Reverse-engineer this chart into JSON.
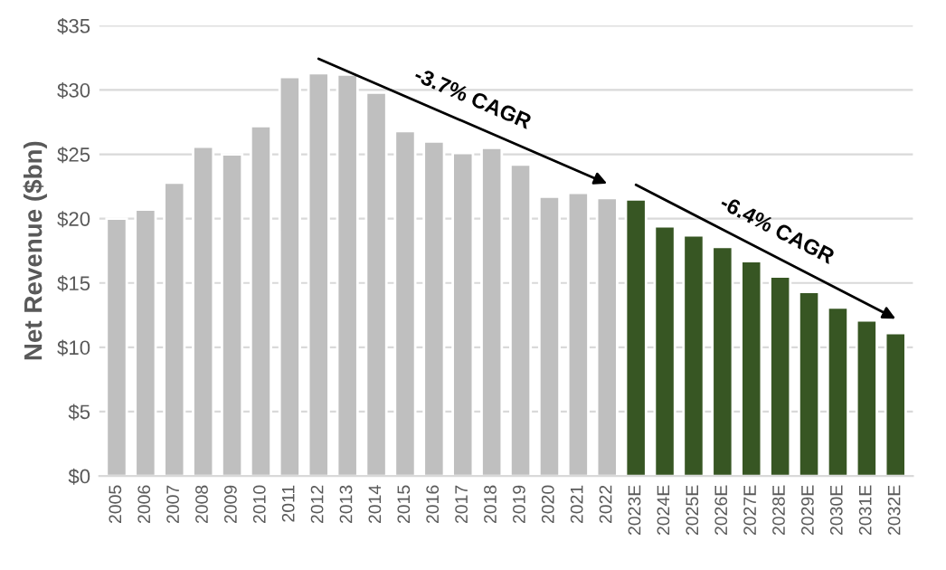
{
  "chart_data": {
    "type": "bar",
    "ylabel": "Net Revenue ($bn)",
    "categories": [
      "2005",
      "2006",
      "2007",
      "2008",
      "2009",
      "2010",
      "2011",
      "2012",
      "2013",
      "2014",
      "2015",
      "2016",
      "2017",
      "2018",
      "2019",
      "2020",
      "2021",
      "2022",
      "2023E",
      "2024E",
      "2025E",
      "2026E",
      "2027E",
      "2028E",
      "2029E",
      "2030E",
      "2031E",
      "2032E"
    ],
    "series": [
      {
        "values": [
          20.0,
          20.7,
          22.8,
          25.6,
          25.0,
          27.2,
          31.0,
          31.3,
          31.2,
          29.8,
          26.8,
          26.0,
          25.1,
          25.5,
          24.2,
          21.7,
          22.0,
          21.6,
          21.5,
          19.4,
          18.7,
          17.8,
          16.7,
          15.5,
          14.3,
          13.1,
          12.1,
          11.1
        ],
        "colors": [
          "#bfbfbf",
          "#bfbfbf",
          "#bfbfbf",
          "#bfbfbf",
          "#bfbfbf",
          "#bfbfbf",
          "#bfbfbf",
          "#bfbfbf",
          "#bfbfbf",
          "#bfbfbf",
          "#bfbfbf",
          "#bfbfbf",
          "#bfbfbf",
          "#bfbfbf",
          "#bfbfbf",
          "#bfbfbf",
          "#bfbfbf",
          "#bfbfbf",
          "#375623",
          "#375623",
          "#375623",
          "#375623",
          "#375623",
          "#375623",
          "#375623",
          "#375623",
          "#375623",
          "#375623"
        ]
      }
    ],
    "annotations": [
      "-3.7% CAGR",
      "-6.4% CAGR"
    ],
    "ylim": [
      0,
      35
    ],
    "yticks": [
      {
        "value": 0,
        "label": "$0"
      },
      {
        "value": 5,
        "label": "$5"
      },
      {
        "value": 10,
        "label": "$10"
      },
      {
        "value": 15,
        "label": "$15"
      },
      {
        "value": 20,
        "label": "$20"
      },
      {
        "value": 25,
        "label": "$25"
      },
      {
        "value": 30,
        "label": "$30"
      },
      {
        "value": 35,
        "label": "$35"
      }
    ],
    "grid": "y",
    "legend": false
  }
}
